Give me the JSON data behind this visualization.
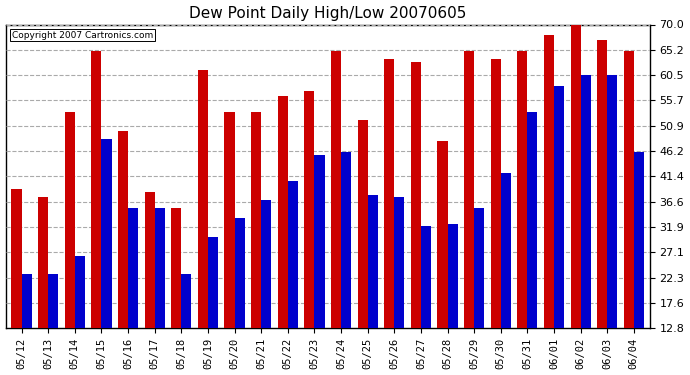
{
  "title": "Dew Point Daily High/Low 20070605",
  "copyright": "Copyright 2007 Cartronics.com",
  "dates": [
    "05/12",
    "05/13",
    "05/14",
    "05/15",
    "05/16",
    "05/17",
    "05/18",
    "05/19",
    "05/20",
    "05/21",
    "05/22",
    "05/23",
    "05/24",
    "05/25",
    "05/26",
    "05/27",
    "05/28",
    "05/29",
    "05/30",
    "05/31",
    "06/01",
    "06/02",
    "06/03",
    "06/04"
  ],
  "highs": [
    39.0,
    37.5,
    53.5,
    65.0,
    50.0,
    38.5,
    35.5,
    61.5,
    53.5,
    53.5,
    56.5,
    57.5,
    65.0,
    52.0,
    63.5,
    63.0,
    48.0,
    65.0,
    63.5,
    65.0,
    68.0,
    70.0,
    67.0,
    65.0
  ],
  "lows": [
    23.0,
    23.0,
    26.5,
    48.5,
    35.5,
    35.5,
    23.0,
    30.0,
    33.5,
    37.0,
    40.5,
    45.5,
    46.0,
    38.0,
    37.5,
    32.0,
    32.5,
    35.5,
    42.0,
    53.5,
    58.5,
    60.5,
    60.5,
    46.0
  ],
  "high_color": "#cc0000",
  "low_color": "#0000cc",
  "bg_color": "#ffffff",
  "grid_color": "#aaaaaa",
  "yticks": [
    12.8,
    17.6,
    22.3,
    27.1,
    31.9,
    36.6,
    41.4,
    46.2,
    50.9,
    55.7,
    60.5,
    65.2,
    70.0
  ],
  "ymin": 12.8,
  "ymax": 70.0,
  "bar_width": 0.38
}
